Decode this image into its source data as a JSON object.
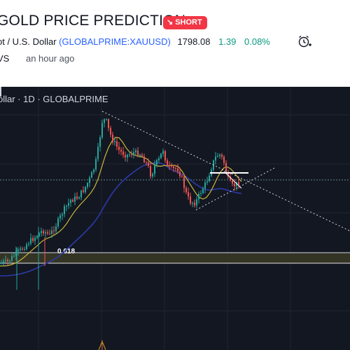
{
  "idea": {
    "title": "GOLD PRICE PREDICTION",
    "direction_badge": "SHORT",
    "direction_icon": "arrow-down-right-icon",
    "badge_color": "#f23645"
  },
  "symbol": {
    "name_partial": "ot / U.S. Dollar",
    "ticker": "(GLOBALPRIME:XAUUSD)",
    "price": "1798.08",
    "change": "1.39",
    "change_pct": "0.08%",
    "change_color": "#089981",
    "alarm_icon": "alarm-clock-plus-icon"
  },
  "author": {
    "name_partial": "VS",
    "posted": "an hour ago"
  },
  "chart": {
    "legend": "ollar · 1D · GLOBALPRIME",
    "fib_level": "0.618",
    "background": "#131722",
    "candle_up_color": "#26a69a",
    "candle_down_color": "#ef5350",
    "ma_fast_color": "#c9b83a",
    "ma_slow_color": "#2c3aa8"
  }
}
